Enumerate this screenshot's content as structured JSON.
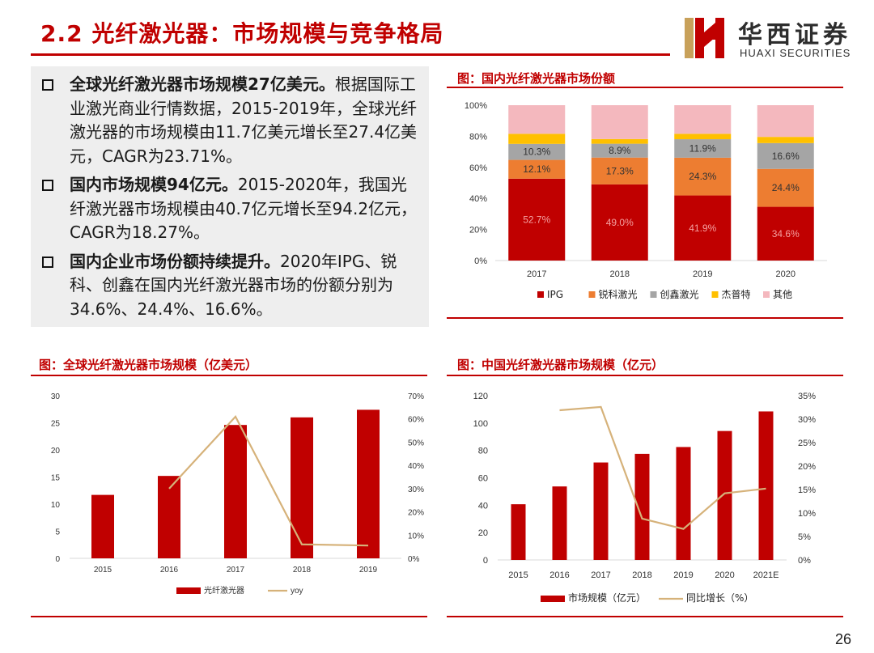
{
  "header": {
    "title": "2.2 光纤激光器：市场规模与竞争格局",
    "logo_cn": "华西证券",
    "logo_en": "HUAXI SECURITIES"
  },
  "bullets": [
    {
      "bold": "全球光纤激光器市场规模27亿美元。",
      "text": "根据国际工业激光商业行情数据，2015-2019年，全球光纤激光器的市场规模由11.7亿美元增长至27.4亿美元，CAGR为23.71%。"
    },
    {
      "bold": "国内市场规模94亿元。",
      "text": "2015-2020年，我国光纤激光器市场规模由40.7亿元增长至94.2亿元，CAGR为18.27%。"
    },
    {
      "bold": "国内企业市场份额持续提升。",
      "text": "2020年IPG、锐科、创鑫在国内光纤激光器市场的份额分别为34.6%、24.4%、16.6%。"
    }
  ],
  "page_number": "26",
  "colors": {
    "brand_red": "#c00000",
    "ipg": "#c00000",
    "raycus": "#ed7d31",
    "maxphotonics": "#a5a5a5",
    "jpt": "#ffc000",
    "other": "#f4b8be",
    "yoy_line": "#d6b27a"
  },
  "chart_data": [
    {
      "type": "bar",
      "stacked": true,
      "title": "图：国内光纤激光器市场份额",
      "categories": [
        "2017",
        "2018",
        "2019",
        "2020"
      ],
      "yticks": [
        "0%",
        "20%",
        "40%",
        "60%",
        "80%",
        "100%"
      ],
      "ylim": [
        0,
        100
      ],
      "series": [
        {
          "name": "IPG",
          "values": [
            52.7,
            49.0,
            41.9,
            34.6
          ],
          "labels": [
            "52.7%",
            "49.0%",
            "41.9%",
            "34.6%"
          ]
        },
        {
          "name": "锐科激光",
          "values": [
            12.1,
            17.3,
            24.3,
            24.4
          ],
          "labels": [
            "12.1%",
            "17.3%",
            "24.3%",
            "24.4%"
          ]
        },
        {
          "name": "创鑫激光",
          "values": [
            10.3,
            8.9,
            11.9,
            16.6
          ],
          "labels": [
            "10.3%",
            "8.9%",
            "11.9%",
            "16.6%"
          ]
        },
        {
          "name": "杰普特",
          "values": [
            6.5,
            3.0,
            3.5,
            4.0
          ]
        },
        {
          "name": "其他",
          "values": [
            18.4,
            21.8,
            18.4,
            20.4
          ]
        }
      ],
      "legend": "bottom"
    },
    {
      "type": "bar+line",
      "title": "图：全球光纤激光器市场规模（亿美元）",
      "categories": [
        "2015",
        "2016",
        "2017",
        "2018",
        "2019"
      ],
      "yticks_left": [
        "0",
        "5",
        "10",
        "15",
        "20",
        "25",
        "30"
      ],
      "yticks_right": [
        "0%",
        "10%",
        "20%",
        "30%",
        "40%",
        "50%",
        "60%",
        "70%"
      ],
      "ylim_left": [
        0,
        30
      ],
      "ylim_right": [
        0,
        70
      ],
      "series": [
        {
          "name": "光纤激光器",
          "type": "bar",
          "axis": "left",
          "values": [
            11.7,
            15.2,
            24.6,
            26.0,
            27.4
          ]
        },
        {
          "name": "yoy",
          "type": "line",
          "axis": "right",
          "values": [
            null,
            30.0,
            61.0,
            6.0,
            5.5
          ]
        }
      ],
      "legend": "bottom"
    },
    {
      "type": "bar+line",
      "title": "图：中国光纤激光器市场规模（亿元）",
      "categories": [
        "2015",
        "2016",
        "2017",
        "2018",
        "2019",
        "2020",
        "2021E"
      ],
      "yticks_left": [
        "0",
        "20",
        "40",
        "60",
        "80",
        "100",
        "120"
      ],
      "yticks_right": [
        "0%",
        "5%",
        "10%",
        "15%",
        "20%",
        "25%",
        "30%",
        "35%"
      ],
      "ylim_left": [
        0,
        120
      ],
      "ylim_right": [
        0,
        35
      ],
      "series": [
        {
          "name": "市场规模（亿元）",
          "type": "bar",
          "axis": "left",
          "values": [
            40.7,
            53.7,
            71.2,
            77.5,
            82.5,
            94.2,
            108.5
          ]
        },
        {
          "name": "同比增长（%）",
          "type": "line",
          "axis": "right",
          "values": [
            null,
            31.9,
            32.6,
            8.8,
            6.6,
            14.2,
            15.2
          ]
        }
      ],
      "legend": "bottom"
    }
  ]
}
